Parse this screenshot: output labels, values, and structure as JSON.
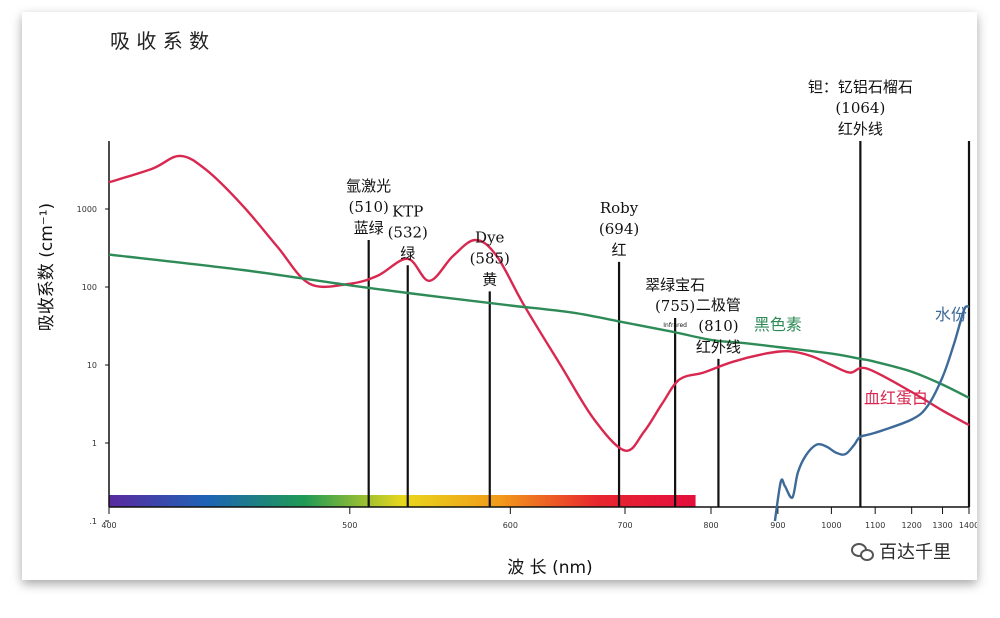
{
  "chart_data": {
    "type": "line",
    "title": "吸 收 系 数",
    "xlabel": "波  长 (nm)",
    "ylabel": "吸收系数 (cm⁻¹)",
    "x_scale": "reciprocal",
    "y_scale": "log",
    "xlim": [
      400,
      1400
    ],
    "ylim": [
      0.1,
      10000
    ],
    "x_ticks": [
      400,
      500,
      600,
      700,
      800,
      900,
      1000,
      1100,
      1200,
      1300,
      1400
    ],
    "x_tick_labels": [
      "400",
      "500",
      "600",
      "700",
      "800",
      "900",
      "1000",
      "1100",
      "1200",
      "1300",
      "1400"
    ],
    "y_ticks": [
      0.1,
      1,
      10,
      100,
      1000
    ],
    "y_tick_labels": [
      ".1",
      "1",
      "10",
      "100",
      "1000"
    ],
    "grid": false,
    "series": [
      {
        "name": "血红蛋白",
        "color": "#d8284f",
        "points": [
          [
            400,
            2200
          ],
          [
            415,
            3300
          ],
          [
            425,
            4800
          ],
          [
            435,
            3200
          ],
          [
            450,
            1100
          ],
          [
            465,
            330
          ],
          [
            480,
            110
          ],
          [
            500,
            110
          ],
          [
            515,
            140
          ],
          [
            532,
            230
          ],
          [
            545,
            120
          ],
          [
            560,
            250
          ],
          [
            575,
            400
          ],
          [
            590,
            250
          ],
          [
            610,
            60
          ],
          [
            640,
            10
          ],
          [
            670,
            2
          ],
          [
            700,
            0.8
          ],
          [
            720,
            1.4
          ],
          [
            740,
            3.2
          ],
          [
            760,
            6.5
          ],
          [
            790,
            8
          ],
          [
            830,
            11
          ],
          [
            880,
            14
          ],
          [
            920,
            15
          ],
          [
            960,
            13
          ],
          [
            1000,
            10
          ],
          [
            1040,
            8
          ],
          [
            1080,
            9
          ],
          [
            1200,
            4.5
          ],
          [
            1300,
            2.6
          ],
          [
            1400,
            1.7
          ]
        ]
      },
      {
        "name": "黑色素",
        "color": "#2e8b57",
        "points": [
          [
            400,
            260
          ],
          [
            450,
            165
          ],
          [
            500,
            105
          ],
          [
            550,
            75
          ],
          [
            600,
            58
          ],
          [
            650,
            47
          ],
          [
            700,
            35
          ],
          [
            750,
            27
          ],
          [
            800,
            21
          ],
          [
            850,
            19
          ],
          [
            900,
            17
          ],
          [
            1000,
            14
          ],
          [
            1064,
            12
          ],
          [
            1100,
            11
          ],
          [
            1200,
            8.2
          ],
          [
            1300,
            5.6
          ],
          [
            1400,
            3.8
          ]
        ]
      },
      {
        "name": "水份",
        "color": "#3d6a99",
        "points": [
          [
            895,
            0.1
          ],
          [
            905,
            0.32
          ],
          [
            912,
            0.28
          ],
          [
            925,
            0.2
          ],
          [
            935,
            0.42
          ],
          [
            950,
            0.7
          ],
          [
            970,
            0.95
          ],
          [
            990,
            0.9
          ],
          [
            1010,
            0.75
          ],
          [
            1030,
            0.72
          ],
          [
            1050,
            0.95
          ],
          [
            1064,
            1.2
          ],
          [
            1100,
            1.35
          ],
          [
            1200,
            2
          ],
          [
            1250,
            3
          ],
          [
            1300,
            7
          ],
          [
            1340,
            18
          ],
          [
            1370,
            40
          ],
          [
            1385,
            55
          ],
          [
            1400,
            56
          ]
        ]
      }
    ],
    "laser_lines": [
      {
        "wavelength": 510,
        "top_value": 400,
        "label_lines": [
          "氩激光",
          "(510)",
          "蓝绿"
        ]
      },
      {
        "wavelength": 532,
        "top_value": 190,
        "label_lines": [
          "KTP",
          "(532)",
          "绿"
        ]
      },
      {
        "wavelength": 585,
        "top_value": 88,
        "label_lines": [
          "Dye",
          "(585)",
          "黄"
        ]
      },
      {
        "wavelength": 694,
        "top_value": 210,
        "label_lines": [
          "Roby",
          "(694)",
          "红"
        ]
      },
      {
        "wavelength": 755,
        "top_value": 40,
        "label_lines": [
          "翠绿宝石",
          "(755)"
        ],
        "sublabel": "Infrared"
      },
      {
        "wavelength": 810,
        "top_value": 12,
        "label_lines": [
          "二极管",
          "(810)",
          "红外线"
        ]
      },
      {
        "wavelength": 1064,
        "top_value": 8000,
        "label_lines": [
          "钽：钇铝石榴石",
          "(1064)",
          "红外线"
        ]
      },
      {
        "wavelength": 1400,
        "top_value": 8000,
        "label_lines": []
      }
    ],
    "spectrum_bar": {
      "from": 400,
      "to": 780,
      "colors": [
        "#5b2aa0",
        "#1e63b5",
        "#1f9a55",
        "#e8d71c",
        "#f29a1a",
        "#e8252f",
        "#e30f3d"
      ]
    },
    "annotations": [
      {
        "text": "黑色素",
        "x": 900,
        "y": 28,
        "color": "#2e8b57"
      },
      {
        "text": "血红蛋白",
        "x": 1155,
        "y": 3.2,
        "color": "#d8284f"
      },
      {
        "text": "水份",
        "x": 1330,
        "y": 38,
        "color": "#3d6a99"
      }
    ]
  },
  "watermark": {
    "text": "百达千里",
    "icon": "wechat-icon"
  }
}
